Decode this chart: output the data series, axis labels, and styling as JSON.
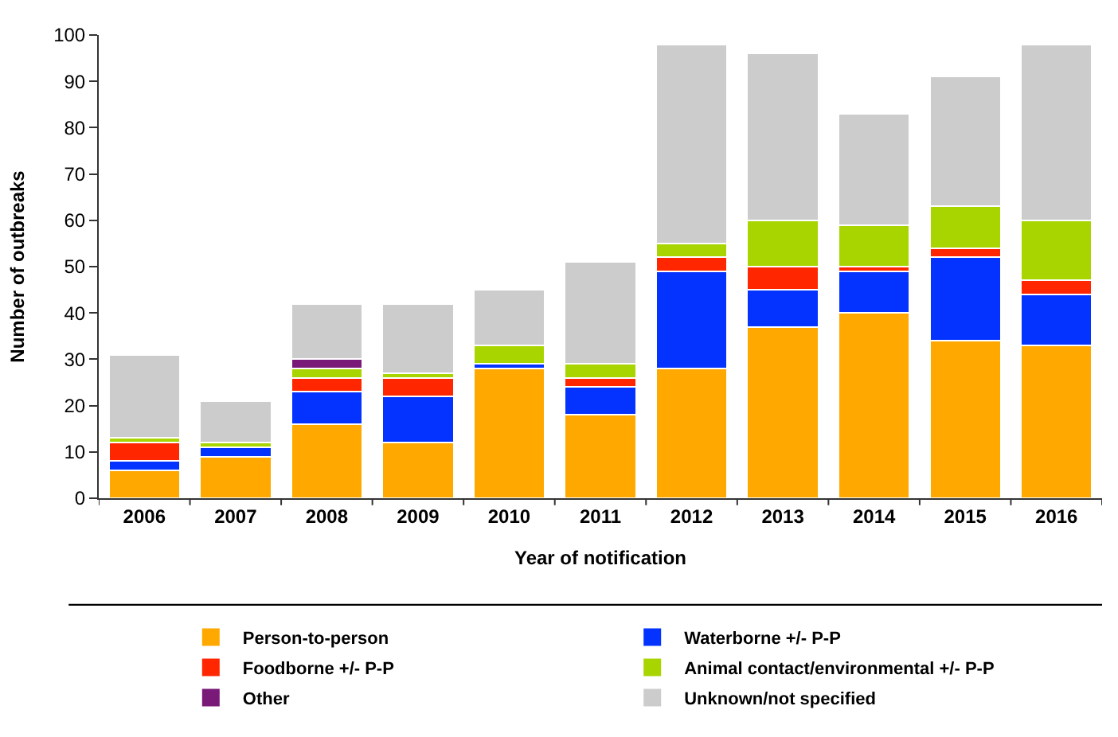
{
  "chart_data": {
    "type": "bar",
    "stacked": true,
    "xlabel": "Year of notification",
    "ylabel": "Number of outbreaks",
    "categories": [
      "2006",
      "2007",
      "2008",
      "2009",
      "2010",
      "2011",
      "2012",
      "2013",
      "2014",
      "2015",
      "2016"
    ],
    "series": [
      {
        "name": "Person-to-person",
        "color": "#ffa800",
        "values": [
          6,
          9,
          16,
          12,
          28,
          18,
          28,
          37,
          40,
          34,
          33
        ]
      },
      {
        "name": "Waterborne +/- P-P",
        "color": "#0433ff",
        "values": [
          2,
          2,
          7,
          10,
          1,
          6,
          21,
          8,
          9,
          18,
          11
        ]
      },
      {
        "name": "Foodborne +/- P-P",
        "color": "#ff2600",
        "values": [
          4,
          0,
          3,
          4,
          0,
          2,
          3,
          5,
          1,
          2,
          3
        ]
      },
      {
        "name": "Animal contact/environmental +/- P-P",
        "color": "#a8d500",
        "values": [
          1,
          1,
          2,
          1,
          4,
          3,
          3,
          10,
          9,
          9,
          13
        ]
      },
      {
        "name": "Other",
        "color": "#7a1a78",
        "values": [
          0,
          0,
          2,
          0,
          0,
          0,
          0,
          0,
          0,
          0,
          0
        ]
      },
      {
        "name": "Unknown/not specified",
        "color": "#cccccc",
        "values": [
          18,
          9,
          12,
          15,
          12,
          22,
          43,
          36,
          24,
          28,
          38
        ]
      }
    ],
    "ylim": [
      0,
      100
    ],
    "yticks": [
      0,
      10,
      20,
      30,
      40,
      50,
      60,
      70,
      80,
      90,
      100
    ],
    "legend": "bottom"
  }
}
